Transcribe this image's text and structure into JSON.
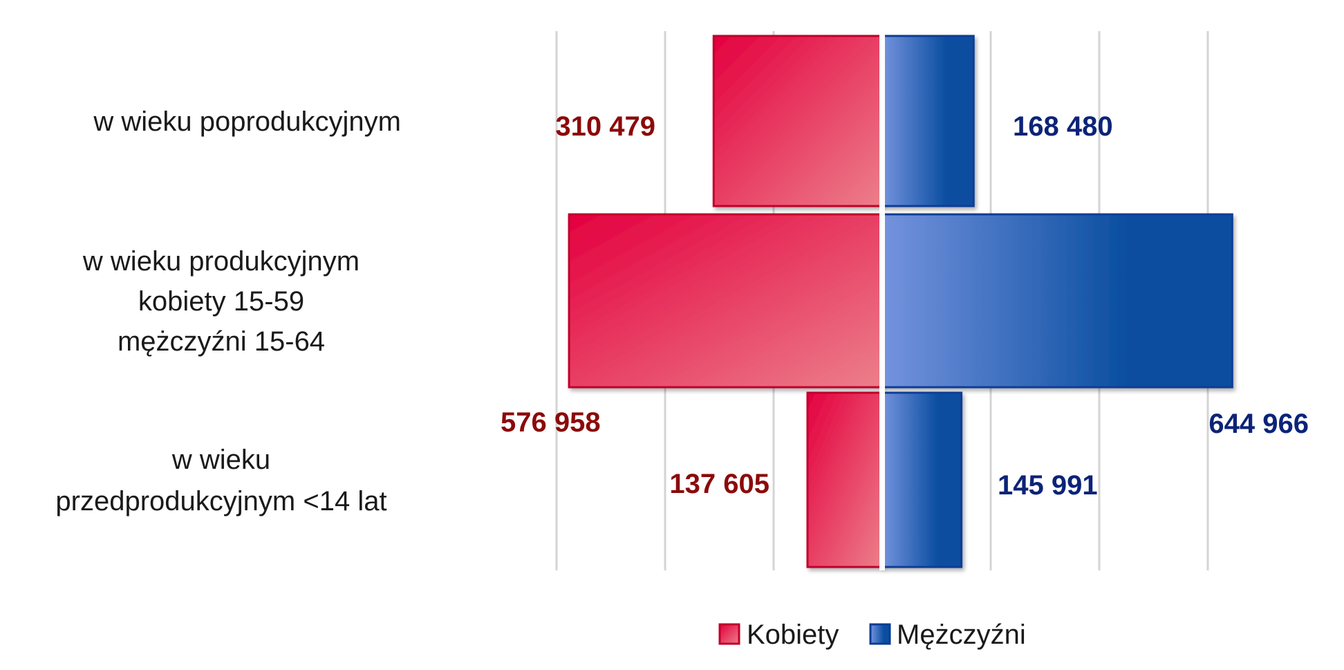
{
  "colors": {
    "female_dark": "#e4003f",
    "female_light": "#ec7f8a",
    "female_border": "#c0002a",
    "female_label": "#8b0a0a",
    "male_dark": "#0a4ea0",
    "male_light": "#7593de",
    "male_border": "#0b3c96",
    "male_label": "#0c2378",
    "grid": "#d4d4d4",
    "center_line": "#ffffff"
  },
  "chart_data": {
    "type": "bar",
    "orientation": "horizontal-butterfly",
    "categories": [
      [
        "w wieku poprodukcyjnym"
      ],
      [
        "w wieku produkcyjnym",
        "kobiety 15-59",
        "mężczyźni 15-64"
      ],
      [
        "w wieku",
        "przedprodukcyjnym <14 lat"
      ]
    ],
    "series": [
      {
        "name": "Kobiety",
        "side": "left",
        "values": [
          310479,
          576958,
          137605
        ],
        "labels": [
          "310 479",
          "576 958",
          "137 605"
        ]
      },
      {
        "name": "Mężczyźni",
        "side": "right",
        "values": [
          168480,
          644966,
          145991
        ],
        "labels": [
          "168 480",
          "644 966",
          "145 991"
        ]
      }
    ],
    "grid": true,
    "legend_position": "bottom-center"
  },
  "legend": {
    "female": "Kobiety",
    "male": "Mężczyźni"
  }
}
